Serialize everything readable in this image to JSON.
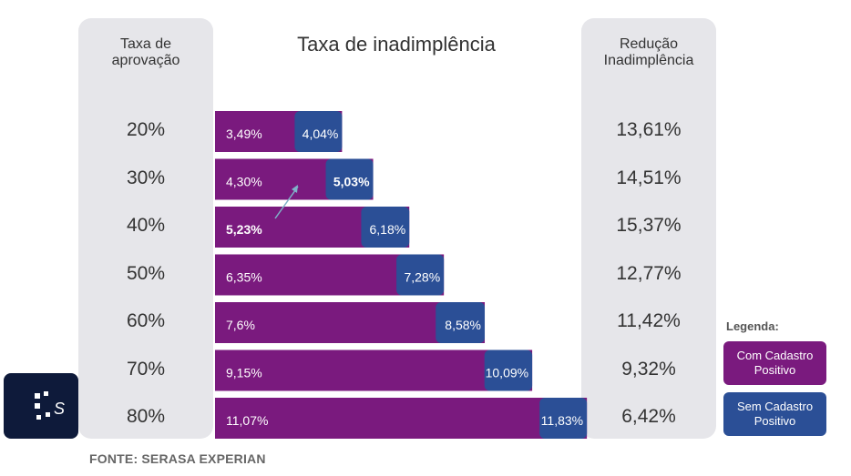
{
  "title": "Taxa de inadimplência",
  "left_header": "Taxa de\naprovação",
  "right_header": "Redução\nInadimplência",
  "source": "FONTE: SERASA EXPERIAN",
  "legend": {
    "title": "Legenda:",
    "com": "Com Cadastro\nPositivo",
    "sem": "Sem Cadastro\nPositivo"
  },
  "colors": {
    "com": "#7a1a7e",
    "sem": "#2b4f96",
    "panel": "#e6e6ea",
    "logo_bg": "#0e1a3a"
  },
  "logo_icon": "serasa-logo-icon",
  "chart_data": {
    "type": "bar",
    "orientation": "horizontal",
    "categories": [
      "20%",
      "30%",
      "40%",
      "50%",
      "60%",
      "70%",
      "80%"
    ],
    "series": [
      {
        "name": "Com Cadastro Positivo",
        "values": [
          3.49,
          4.3,
          5.23,
          6.35,
          7.6,
          9.15,
          11.07
        ],
        "labels": [
          "3,49%",
          "4,30%",
          "5,23%",
          "6,35%",
          "7,6%",
          "9,15%",
          "11,07%"
        ]
      },
      {
        "name": "Sem Cadastro Positivo",
        "values": [
          4.04,
          5.03,
          6.18,
          7.28,
          8.58,
          10.09,
          11.83
        ],
        "labels": [
          "4,04%",
          "5,03%",
          "6,18%",
          "7,28%",
          "8,58%",
          "10,09%",
          "11,83%"
        ]
      }
    ],
    "reduction": [
      "13,61%",
      "14,51%",
      "15,37%",
      "12,77%",
      "11,42%",
      "9,32%",
      "6,42%"
    ],
    "annotation_arrow": {
      "from_category": "40%",
      "to_category": "30%"
    }
  }
}
